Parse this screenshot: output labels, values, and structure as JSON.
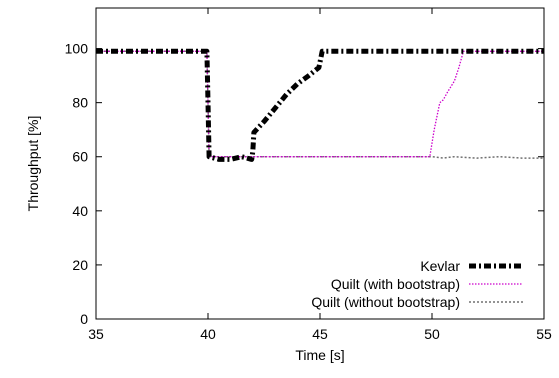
{
  "chart_data": {
    "type": "line",
    "title": "",
    "xlabel": "Time [s]",
    "ylabel": "Throughput [%]",
    "xlim": [
      35,
      55
    ],
    "ylim": [
      0,
      115
    ],
    "xticks": [
      35,
      40,
      45,
      50,
      55
    ],
    "yticks": [
      0,
      20,
      40,
      60,
      80,
      100
    ],
    "grid": false,
    "legend_position": "bottom-right",
    "series": [
      {
        "name": "Quilt (without bootstrap)",
        "color": "#707070",
        "style": "dotted",
        "x": [
          35,
          39.95,
          40.0,
          40.05,
          42,
          45,
          48,
          50,
          50.5,
          51,
          52,
          53,
          54,
          55
        ],
        "y": [
          99,
          99,
          80,
          60,
          60,
          60,
          60,
          60,
          59.5,
          60,
          59.5,
          60,
          59.5,
          59.5
        ]
      },
      {
        "name": "Quilt (with bootstrap)",
        "color": "#cc00cc",
        "style": "dotted",
        "x": [
          35,
          39.95,
          40.0,
          40.05,
          42,
          44,
          46,
          48,
          49.9,
          50.1,
          50.35,
          50.5,
          50.7,
          51.0,
          51.2,
          51.4,
          55
        ],
        "y": [
          99,
          99,
          80,
          60,
          60,
          60,
          60,
          60,
          60,
          70,
          80,
          81,
          84,
          88,
          93,
          99,
          99
        ]
      },
      {
        "name": "Kevlar",
        "color": "#000000",
        "style": "dash-dot",
        "x": [
          35,
          39.95,
          40.0,
          40.05,
          40.5,
          41.0,
          41.5,
          41.95,
          42.0,
          42.05,
          42.5,
          43.0,
          43.5,
          44.0,
          44.5,
          44.95,
          45.0,
          45.1,
          47,
          50,
          52,
          55
        ],
        "y": [
          99,
          99,
          80,
          60,
          59,
          59,
          60,
          59,
          62,
          69,
          73,
          78,
          83,
          87,
          90,
          93,
          95,
          99,
          99,
          99,
          99,
          99
        ]
      }
    ]
  }
}
